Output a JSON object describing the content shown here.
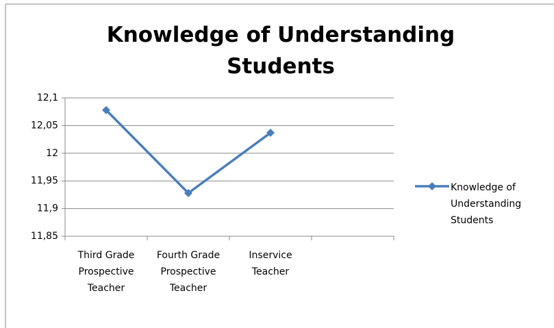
{
  "chart_data": {
    "type": "line",
    "title": "Knowledge of Understanding Students",
    "categories": [
      "Third Grade Prospective Teacher",
      "Fourth Grade Prospective Teacher",
      "Inservice Teacher",
      null
    ],
    "series": [
      {
        "name": "Knowledge of Understanding Students",
        "color": "#4a7ebb",
        "values": [
          12.078,
          11.928,
          12.037,
          null
        ]
      }
    ],
    "ylim": [
      11.85,
      12.1
    ],
    "yticks": [
      {
        "value": 11.85,
        "label": "11,85"
      },
      {
        "value": 11.9,
        "label": "11,9"
      },
      {
        "value": 11.95,
        "label": "11,95"
      },
      12,
      {
        "value": 12.05,
        "label": "12,05"
      },
      {
        "value": 12.1,
        "label": "12,1"
      }
    ],
    "grid": true,
    "legend": "right"
  }
}
